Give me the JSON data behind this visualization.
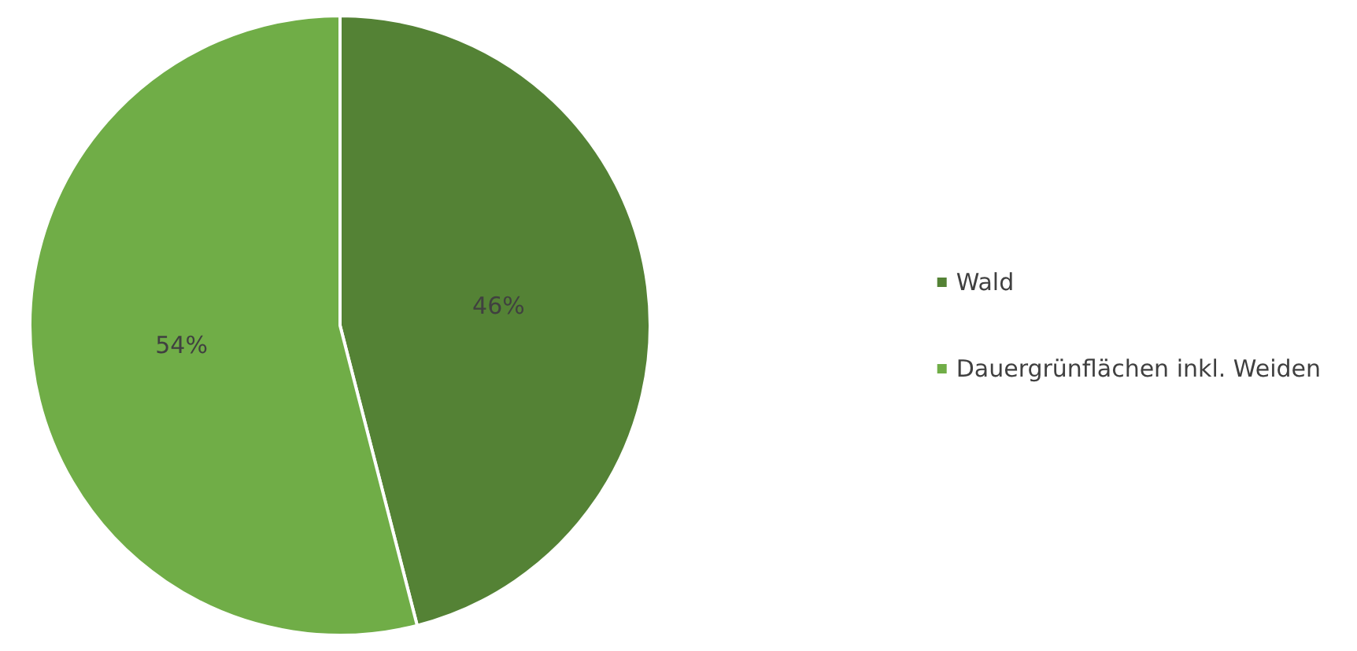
{
  "chart_data": {
    "type": "pie",
    "categories": [
      "Wald",
      "Dauergrünflächen inkl. Weiden"
    ],
    "values": [
      46,
      54
    ],
    "colors": [
      "#548235",
      "#70ad47"
    ],
    "value_labels": [
      "46%",
      "54%"
    ],
    "legend": "right"
  }
}
